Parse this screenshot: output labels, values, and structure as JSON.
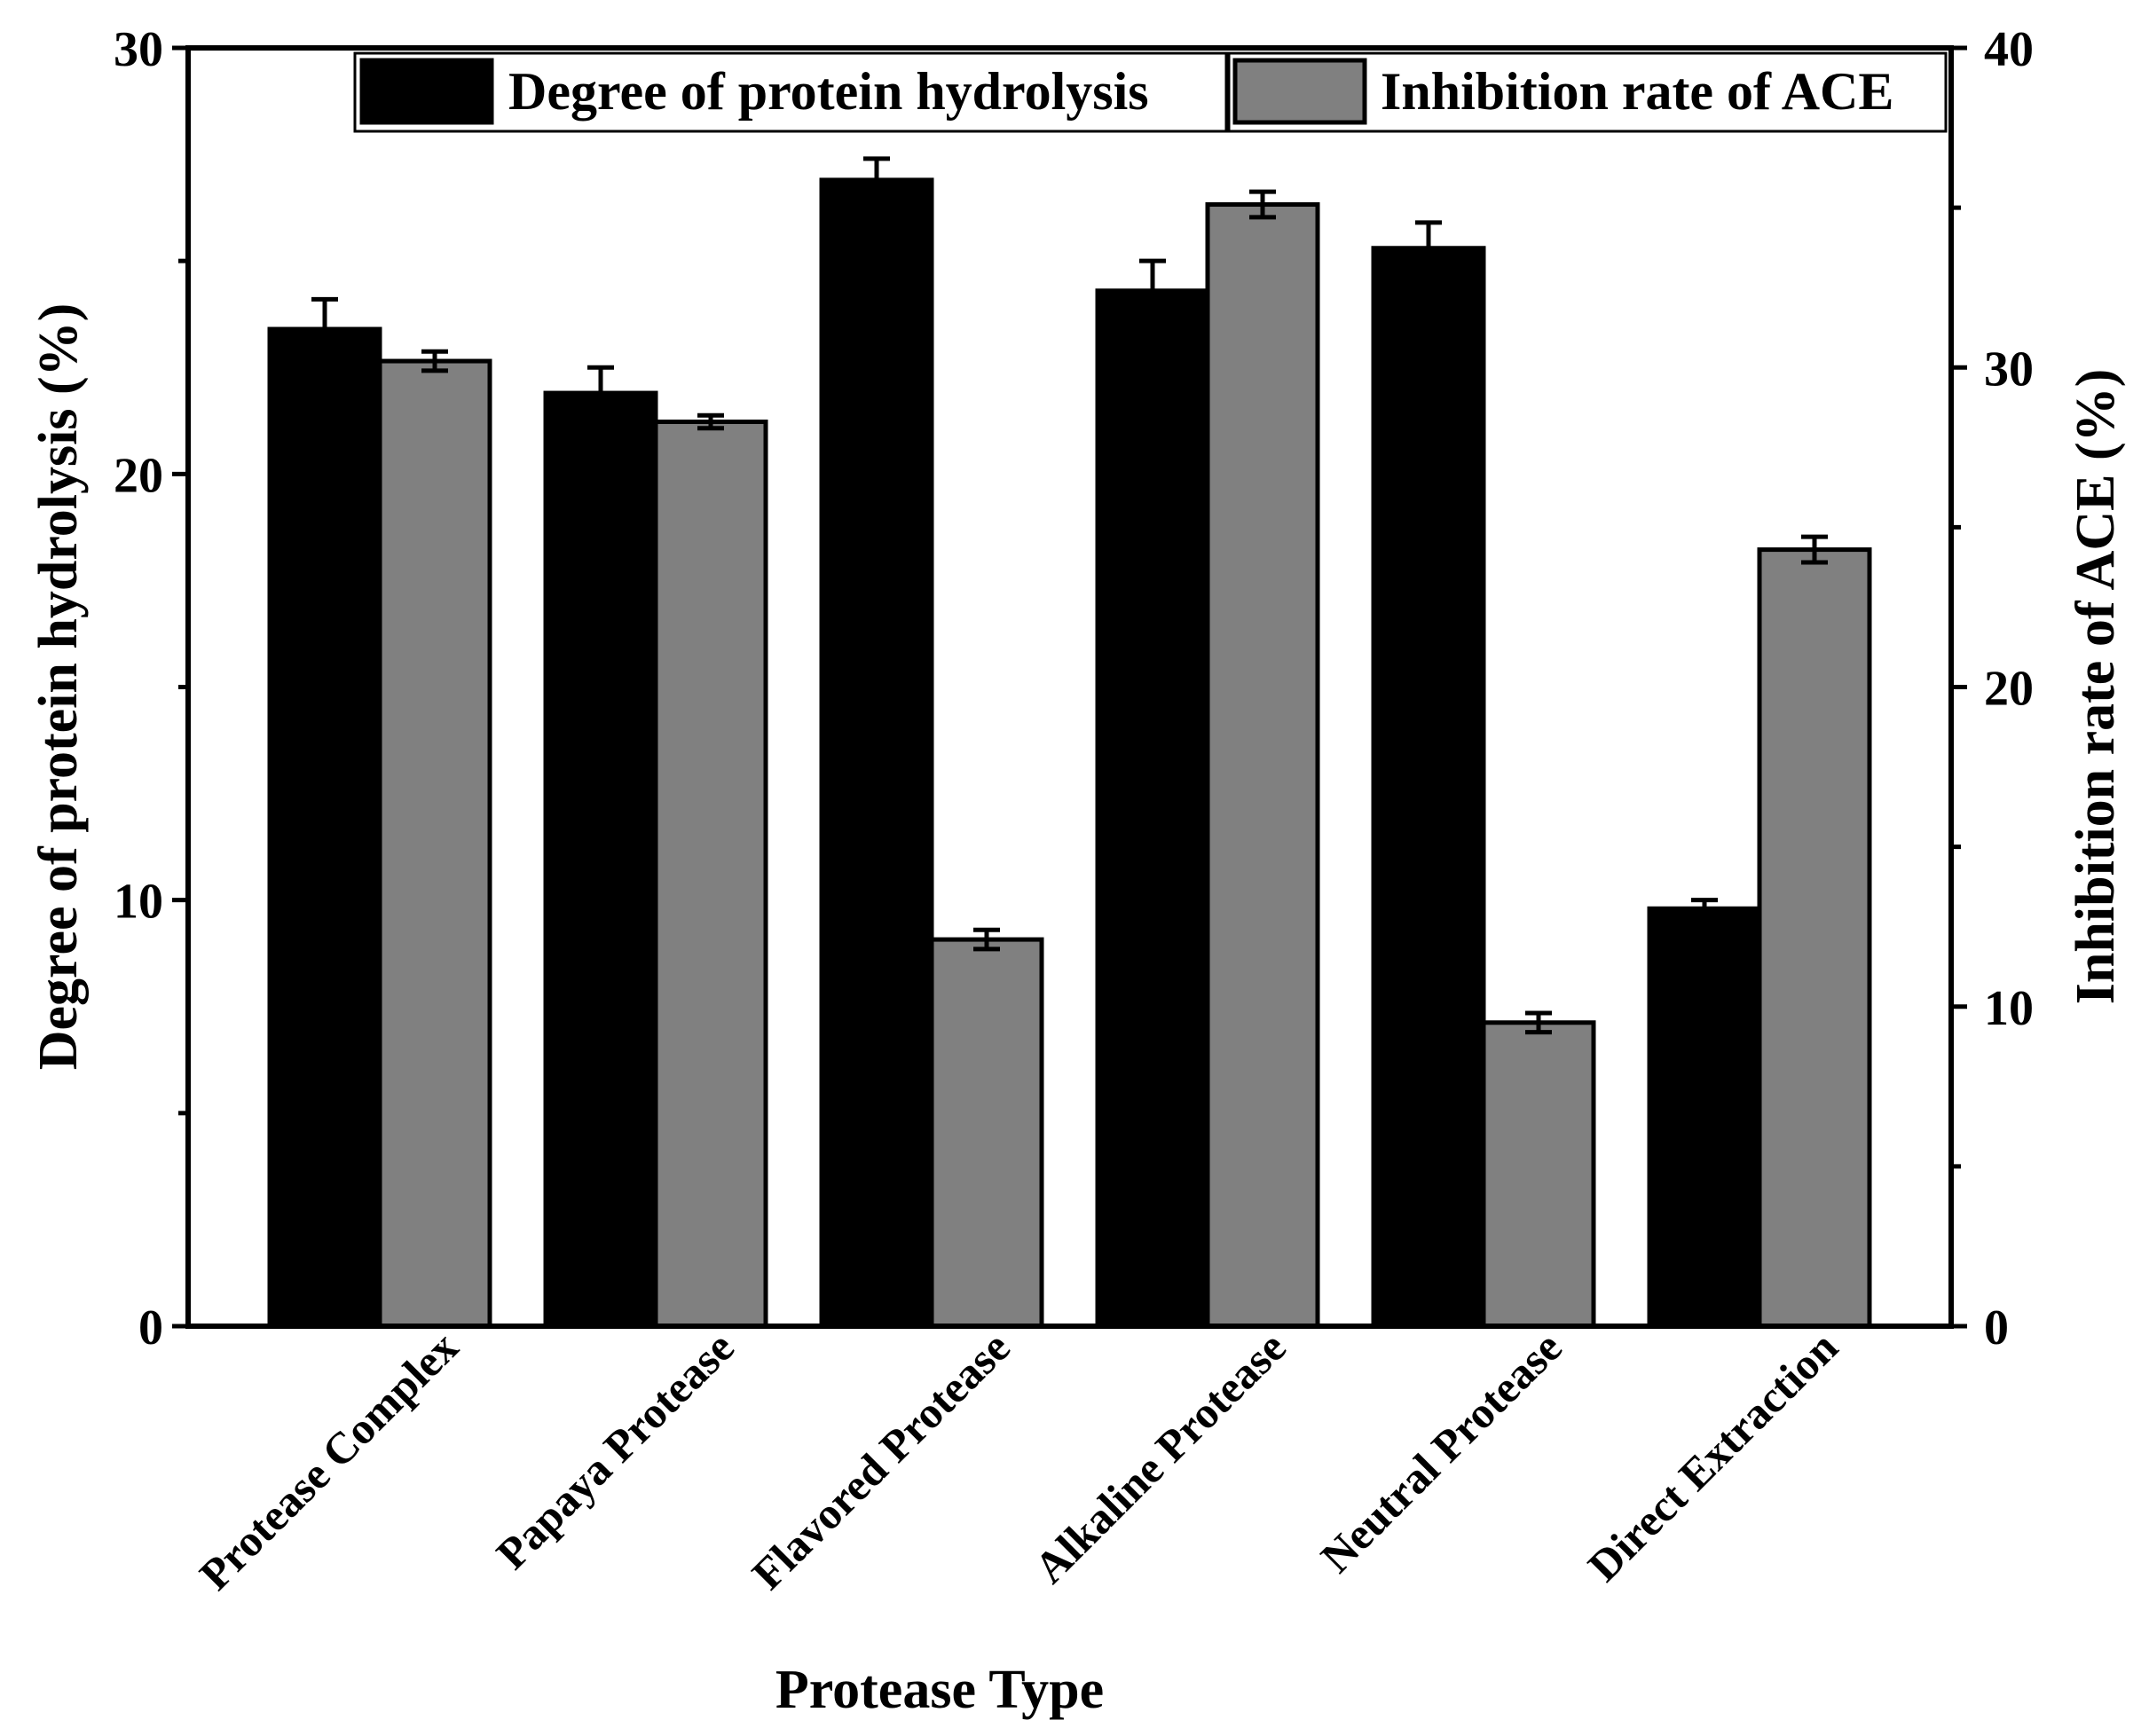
{
  "chart_data": {
    "type": "bar",
    "xlabel": "Protease Type",
    "ylabel_left": "Degree of protein hydrolysis (%)",
    "ylabel_right": "Inhibition rate of ACE (%)",
    "categories": [
      "Protease Complex",
      "Papaya Protease",
      "Flavored Protease",
      "Alkaline Protease",
      "Neutral Protease",
      "Direct Extraction"
    ],
    "ylim_left": [
      0,
      30
    ],
    "ylim_right": [
      0,
      40
    ],
    "yticks_left": [
      "0",
      "10",
      "20",
      "30"
    ],
    "yticks_right": [
      "0",
      "10",
      "20",
      "30",
      "40"
    ],
    "grid": false,
    "legend_position": "top-right",
    "series": [
      {
        "name": "Degree of protein hydrolysis",
        "axis": "left",
        "color": "#000000",
        "values": [
          23.4,
          21.9,
          26.9,
          24.3,
          25.3,
          9.8
        ],
        "errors": [
          0.7,
          0.6,
          0.5,
          0.7,
          0.6,
          0.2
        ]
      },
      {
        "name": "Inhibition rate of ACE",
        "axis": "right",
        "color": "#808080",
        "values": [
          30.2,
          28.3,
          12.1,
          35.1,
          9.5,
          24.3
        ],
        "errors": [
          0.3,
          0.2,
          0.3,
          0.4,
          0.3,
          0.4
        ]
      }
    ]
  }
}
